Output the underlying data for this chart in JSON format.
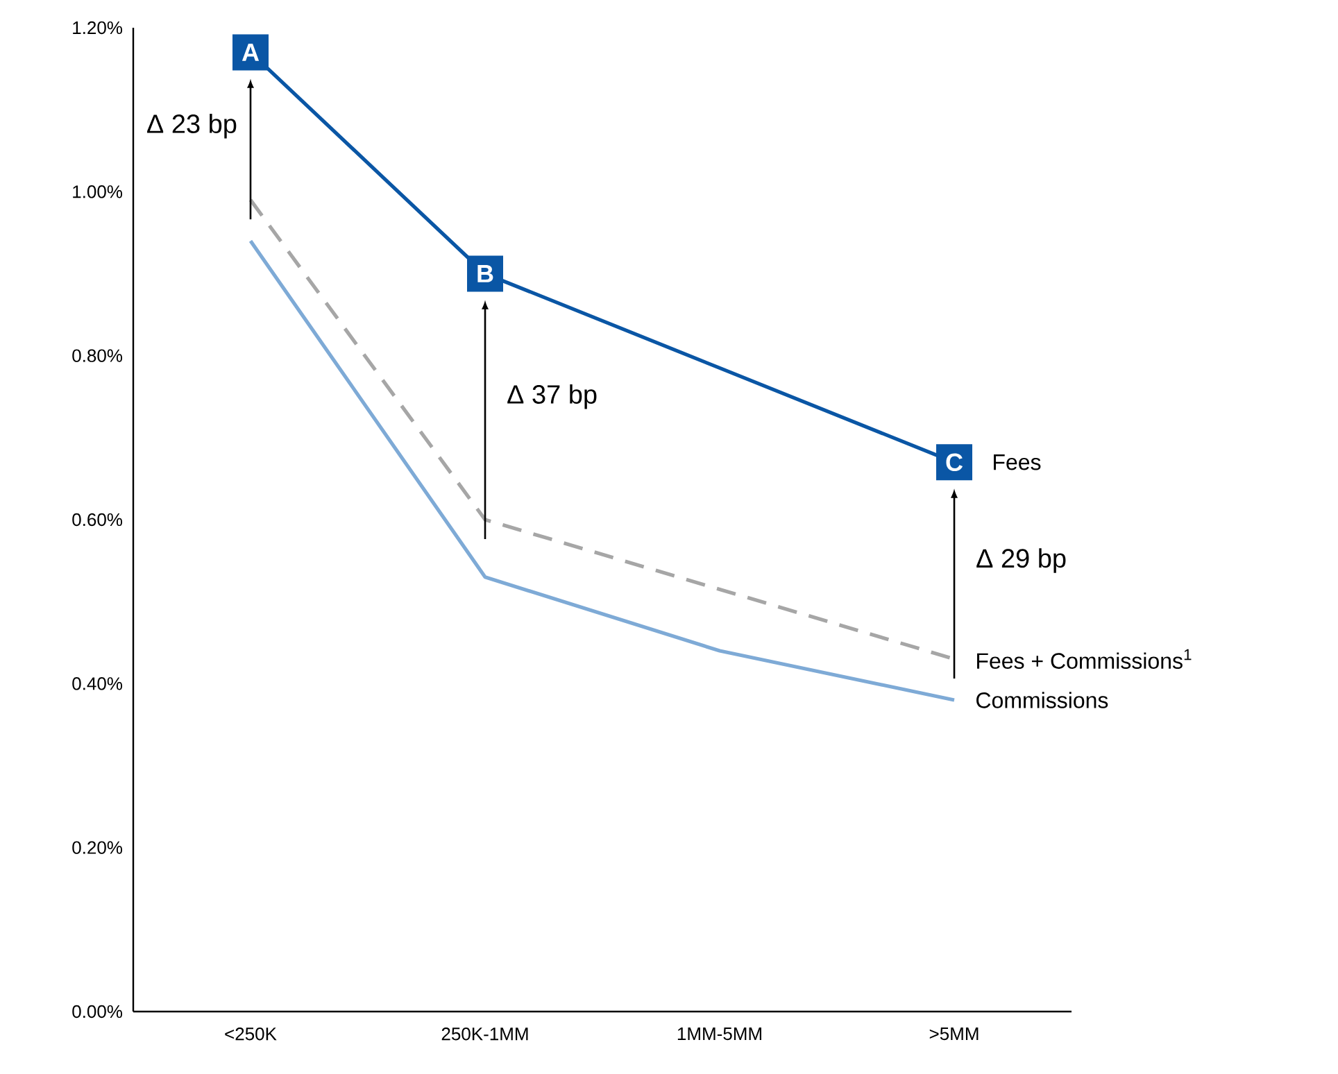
{
  "chart_data": {
    "type": "line",
    "categories": [
      "<250K",
      "250K-1MM",
      "1MM-5MM",
      ">5MM"
    ],
    "series": [
      {
        "name": "Fees",
        "color": "#0a56a5",
        "values": [
          1.17,
          0.9,
          0.785,
          0.67
        ],
        "line_style": "solid"
      },
      {
        "name": "Fees + Commissions$^{1}$",
        "color": "#a6a6a6",
        "values": [
          0.99,
          0.6,
          0.515,
          0.43
        ],
        "line_style": "dashed"
      },
      {
        "name": "Commissions",
        "color": "#7eaad6",
        "values": [
          0.94,
          0.53,
          0.44,
          0.38
        ],
        "line_style": "solid"
      }
    ],
    "ylim": [
      0,
      1.2
    ],
    "yticks": [
      {
        "value": 0,
        "label": "0.00%"
      },
      {
        "value": 0.2,
        "label": "0.20%"
      },
      {
        "value": 0.4,
        "label": "0.40%"
      },
      {
        "value": 0.6,
        "label": "0.60%"
      },
      {
        "value": 0.8,
        "label": "0.80%"
      },
      {
        "value": 1.0,
        "label": "1.00%"
      },
      {
        "value": 1.2,
        "label": "1.20%"
      }
    ],
    "annotations": [
      {
        "text": "A",
        "x": "<250K",
        "y": 1.17
      },
      {
        "text": "B",
        "x": "250K-1MM",
        "y": 0.9
      },
      {
        "text": "C",
        "x": ">5MM",
        "y": 0.67
      },
      "Δ 23 bp",
      "Δ 37 bp",
      "Δ 29 bp"
    ],
    "grid": false,
    "legend": false
  }
}
